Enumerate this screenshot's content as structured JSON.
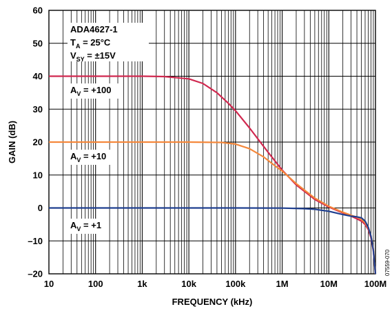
{
  "chart_data": {
    "type": "line",
    "xscale": "log",
    "xlabel": "FREQUENCY (kHz)",
    "ylabel": "GAIN (dB)",
    "xlim": [
      10,
      100000000
    ],
    "ylim": [
      -20,
      60
    ],
    "grid": true,
    "x_ticks": [
      10,
      100,
      1000,
      10000,
      100000,
      1000000,
      10000000,
      100000000
    ],
    "x_tick_labels": [
      "10",
      "100",
      "1k",
      "10k",
      "100k",
      "1M",
      "10M",
      "100M"
    ],
    "y_ticks": [
      -20,
      -10,
      0,
      10,
      20,
      30,
      40,
      50,
      60
    ],
    "y_tick_labels": [
      "–20",
      "–10",
      "0",
      "10",
      "20",
      "30",
      "40",
      "50",
      "60"
    ],
    "legend_block": {
      "line1": "ADA4627-1",
      "line2_main": "T",
      "line2_sub": "A",
      "line2_rest": " = 25°C",
      "line3_main": "V",
      "line3_sub": "SY",
      "line3_rest": " = ±15V"
    },
    "annotations": [
      {
        "main": "A",
        "sub": "V",
        "rest": " = +100"
      },
      {
        "main": "A",
        "sub": "V",
        "rest": " = +10"
      },
      {
        "main": "A",
        "sub": "V",
        "rest": " = +1"
      }
    ],
    "figure_id": "07559-070",
    "series": [
      {
        "color": "#d0284f",
        "x": [
          10,
          100,
          1000,
          3000,
          10000,
          20000,
          40000,
          70000,
          100000,
          200000,
          500000,
          1000000,
          2000000,
          5000000,
          10000000,
          20000000,
          30000000,
          40000000,
          50000000,
          60000000,
          70000000,
          80000000,
          90000000,
          100000000
        ],
        "y": [
          40,
          40,
          40,
          39.9,
          39.2,
          37.8,
          35,
          31.8,
          29.5,
          24.3,
          16.9,
          11.5,
          7.0,
          2.6,
          0.3,
          -1.5,
          -2.5,
          -3.3,
          -4.0,
          -5.0,
          -6.5,
          -9.0,
          -13.0,
          -20.0
        ]
      },
      {
        "color": "#f5883b",
        "x": [
          10,
          100,
          1000,
          10000,
          50000,
          100000,
          200000,
          400000,
          700000,
          1000000,
          2000000,
          5000000,
          10000000,
          20000000,
          30000000,
          40000000,
          50000000,
          60000000,
          70000000,
          80000000,
          90000000,
          100000000
        ],
        "y": [
          20,
          20,
          20,
          20,
          19.9,
          19.4,
          18.0,
          15.5,
          12.8,
          11.2,
          7.4,
          3.0,
          0.5,
          -1.3,
          -2.2,
          -2.8,
          -3.5,
          -4.5,
          -6.0,
          -8.5,
          -12.5,
          -20.0
        ]
      },
      {
        "color": "#1f3f8f",
        "x": [
          10,
          100,
          1000,
          10000,
          100000,
          1000000,
          3000000,
          5000000,
          10000000,
          20000000,
          30000000,
          40000000,
          50000000,
          60000000,
          70000000,
          80000000,
          90000000,
          100000000
        ],
        "y": [
          0,
          0,
          0,
          0,
          0,
          -0.05,
          -0.2,
          -0.4,
          -1.0,
          -2.0,
          -2.5,
          -2.7,
          -3.0,
          -4.0,
          -5.8,
          -8.5,
          -12.8,
          -20.0
        ]
      }
    ]
  }
}
